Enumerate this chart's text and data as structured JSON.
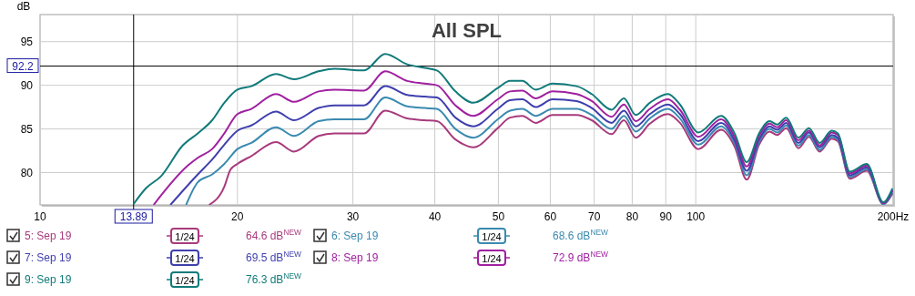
{
  "chart_data": {
    "type": "line",
    "title": "All SPL",
    "ylabel": "dB",
    "log": "x",
    "grid": true,
    "legend": "bottom",
    "line_style": "solid",
    "marker": "none",
    "xlim": [
      10,
      200
    ],
    "ylim": [
      76.3,
      98.1
    ],
    "xticks": [
      10,
      20,
      30,
      40,
      50,
      60,
      70,
      80,
      90,
      100,
      {
        "value": 200,
        "label": "200Hz"
      }
    ],
    "yticks": [
      80,
      85,
      90,
      95
    ],
    "ref_lines": [
      {
        "axis": "x",
        "value": 13.89,
        "label": "13.89",
        "color": "#000000"
      },
      {
        "axis": "y",
        "value": 92.2,
        "label": "92.2",
        "color": "#000000"
      }
    ],
    "annotations": [
      "1/24",
      "64.6 dB$^{NEW}$",
      "1/24",
      "68.6 dB$^{NEW}$",
      "1/24",
      "69.5 dB$^{NEW}$",
      "1/24",
      "72.9 dB$^{NEW}$",
      "1/24",
      "76.3 dB$^{NEW}$"
    ],
    "series": [
      {
        "name": "5: Sep 19",
        "color": "#a83a7c",
        "x": [
          18.1,
          19.1,
          19.5,
          20,
          21,
          22.9,
          24.4,
          26.6,
          28.1,
          31.2,
          33.6,
          36.3,
          38.6,
          40.3,
          43,
          45.8,
          49.9,
          52.1,
          54.4,
          57,
          60.5,
          65.8,
          69.4,
          74.4,
          77.7,
          81,
          85.1,
          90.7,
          94.6,
          100.9,
          109.3,
          114.6,
          119.6,
          124.9,
          129.6,
          133.1,
          137.4,
          143.4,
          148.8,
          154.5,
          161.2,
          164.7,
          171.8,
          182.3,
          193.2,
          199.5
        ],
        "values": [
          76.3,
          78.4,
          80.3,
          81.0,
          81.9,
          83.5,
          82.4,
          84.2,
          84.5,
          84.5,
          87.1,
          86.2,
          86.0,
          85.9,
          83.8,
          82.9,
          85.1,
          86.3,
          86.5,
          85.7,
          86.6,
          86.6,
          86.0,
          84.4,
          86.0,
          84.0,
          85.6,
          86.7,
          85.7,
          82.7,
          84.9,
          83.0,
          79.2,
          83.2,
          84.7,
          84.3,
          85.1,
          82.8,
          84.1,
          82.4,
          83.9,
          83.6,
          79.3,
          80.2,
          76.4,
          77.6
        ]
      },
      {
        "name": "6: Sep 19",
        "color": "#3a8ab0",
        "x": [
          16.7,
          17.4,
          18.3,
          19.1,
          20,
          21,
          22.9,
          24.4,
          26.6,
          28.1,
          31.2,
          33.6,
          36.3,
          38.6,
          40.3,
          43,
          45.8,
          49.9,
          52.1,
          54.4,
          57,
          60.5,
          65.8,
          69.4,
          74.4,
          77.7,
          81,
          85.1,
          90.7,
          94.6,
          100.9,
          109.3,
          114.6,
          119.6,
          124.9,
          129.6,
          133.1,
          137.4,
          143.4,
          148.8,
          154.5,
          161.2,
          164.7,
          171.8,
          182.3,
          193.2,
          199.5
        ],
        "values": [
          76.3,
          78.9,
          79.8,
          81.0,
          82.7,
          83.4,
          85.2,
          84.2,
          85.9,
          86.1,
          86.1,
          88.6,
          87.6,
          87.4,
          87.3,
          85.0,
          84.0,
          86.1,
          87.1,
          87.3,
          86.5,
          87.3,
          87.3,
          86.6,
          85.0,
          86.5,
          84.7,
          86.2,
          87.3,
          86.2,
          83.2,
          85.3,
          83.4,
          79.7,
          83.5,
          85.0,
          84.6,
          85.4,
          83.1,
          84.3,
          82.6,
          84.1,
          83.8,
          79.5,
          80.4,
          76.4,
          77.7
        ]
      },
      {
        "name": "7: Sep 19",
        "color": "#3f3fae",
        "x": [
          15.8,
          17.4,
          18.3,
          19.1,
          20,
          21,
          22.9,
          24.4,
          26.6,
          28.1,
          31.2,
          33.6,
          36.3,
          38.6,
          40.3,
          43,
          45.8,
          49.9,
          52.1,
          54.4,
          57,
          60.5,
          65.8,
          69.4,
          74.4,
          77.7,
          81,
          85.1,
          90.7,
          94.6,
          100.9,
          109.3,
          114.6,
          119.6,
          124.9,
          129.6,
          133.1,
          137.4,
          143.4,
          148.8,
          154.5,
          161.2,
          164.7,
          171.8,
          182.3,
          193.2,
          199.5
        ],
        "values": [
          76.3,
          79.8,
          81.5,
          83.2,
          84.8,
          85.4,
          87.0,
          86.0,
          87.4,
          87.7,
          87.7,
          89.9,
          88.9,
          88.7,
          88.6,
          86.3,
          85.3,
          87.3,
          88.3,
          88.4,
          87.5,
          88.4,
          88.2,
          87.4,
          85.7,
          87.1,
          85.3,
          86.7,
          87.8,
          86.7,
          83.6,
          85.7,
          83.7,
          80.2,
          83.8,
          85.3,
          84.9,
          85.7,
          83.4,
          84.6,
          82.9,
          84.3,
          84.0,
          79.7,
          80.6,
          76.5,
          77.9
        ]
      },
      {
        "name": "8: Sep 19",
        "color": "#a020a0",
        "x": [
          14.9,
          16.8,
          17.4,
          18.3,
          19.1,
          20,
          21,
          22.9,
          24.4,
          26.6,
          28.1,
          31.2,
          33.6,
          36.3,
          38.6,
          40.3,
          43,
          45.8,
          49.9,
          52.1,
          54.4,
          57,
          60.5,
          65.8,
          69.4,
          74.4,
          77.7,
          81,
          85.1,
          90.7,
          94.6,
          100.9,
          109.3,
          114.6,
          119.6,
          124.9,
          129.6,
          133.1,
          137.4,
          143.4,
          148.8,
          154.5,
          161.2,
          164.7,
          171.8,
          182.3,
          193.2,
          199.5
        ],
        "values": [
          76.3,
          80.8,
          81.7,
          82.7,
          84.5,
          86.7,
          87.3,
          89.0,
          88.1,
          89.3,
          89.5,
          89.4,
          91.6,
          90.5,
          90.2,
          90.0,
          87.7,
          86.5,
          88.4,
          89.3,
          89.4,
          88.5,
          89.3,
          89.0,
          88.2,
          86.4,
          87.8,
          85.9,
          87.3,
          88.4,
          87.2,
          84.1,
          86.1,
          84.1,
          80.7,
          84.2,
          85.6,
          85.2,
          86.0,
          83.7,
          84.8,
          83.1,
          84.6,
          84.3,
          79.9,
          80.8,
          76.5,
          78.0
        ]
      },
      {
        "name": "9: Sep 19",
        "color": "#117a7a",
        "x": [
          13.89,
          14.5,
          15.3,
          16.5,
          17.4,
          18.3,
          19.1,
          20,
          21,
          22.9,
          24.4,
          26.6,
          28.1,
          31.2,
          33.6,
          36.3,
          38.6,
          40.3,
          43,
          45.8,
          49.9,
          52.1,
          54.4,
          57,
          60.5,
          65.8,
          69.4,
          74.4,
          77.7,
          81,
          85.1,
          90.7,
          94.6,
          100.9,
          109.3,
          114.6,
          119.6,
          124.9,
          129.6,
          133.1,
          137.4,
          143.4,
          148.8,
          154.5,
          161.2,
          164.7,
          171.8,
          182.3,
          193.2,
          199.5
        ],
        "values": [
          76.4,
          78.2,
          79.6,
          83.1,
          84.5,
          86.0,
          88.0,
          89.5,
          89.9,
          91.3,
          90.7,
          91.6,
          91.9,
          91.7,
          93.6,
          92.4,
          92.0,
          91.7,
          89.3,
          88.0,
          89.7,
          90.5,
          90.5,
          89.5,
          90.2,
          89.9,
          89.0,
          87.2,
          88.5,
          86.6,
          88.0,
          89.0,
          87.8,
          84.6,
          86.5,
          84.5,
          81.2,
          84.5,
          85.9,
          85.5,
          86.3,
          84.0,
          85.1,
          83.4,
          84.8,
          84.5,
          80.1,
          81.0,
          76.6,
          78.2
        ]
      }
    ]
  }
}
